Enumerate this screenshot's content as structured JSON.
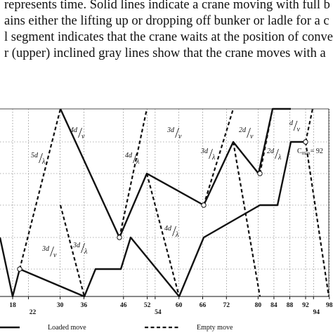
{
  "caption_lines": [
    "represents time. Solid lines indicate a crane moving with full b",
    "ains either the lifting up or dropping off bunker or ladle for a c",
    "l segment indicates that the crane waits at the position of conve",
    "r (upper) inclined gray lines show that the crane moves with a"
  ],
  "figure": {
    "time_ticks": [
      {
        "t": 18,
        "label": "18"
      },
      {
        "t": 22,
        "label": "22"
      },
      {
        "t": 30,
        "label": "30"
      },
      {
        "t": 36,
        "label": "36"
      },
      {
        "t": 46,
        "label": "46"
      },
      {
        "t": 52,
        "label": "52"
      },
      {
        "t": 54,
        "label": "54"
      },
      {
        "t": 60,
        "label": "60"
      },
      {
        "t": 66,
        "label": "66"
      },
      {
        "t": 72,
        "label": "72"
      },
      {
        "t": 80,
        "label": "80"
      },
      {
        "t": 84,
        "label": "84"
      },
      {
        "t": 88,
        "label": "88"
      },
      {
        "t": 92,
        "label": "92"
      },
      {
        "t": 94,
        "label": "94"
      },
      {
        "t": 98,
        "label": "98"
      }
    ],
    "annotations": [
      {
        "id": "ann-5d-lambda",
        "num": "5d",
        "den": "λ"
      },
      {
        "id": "ann-3d-v-left",
        "num": "3d",
        "den": "v"
      },
      {
        "id": "ann-4d-v-first",
        "num": "4d",
        "den": "v"
      },
      {
        "id": "ann-3d-lambda-left",
        "num": "3d",
        "den": "λ"
      },
      {
        "id": "ann-4d-lambda-mid",
        "num": "4d",
        "den": "λ"
      },
      {
        "id": "ann-4d-lambda-low",
        "num": "4d",
        "den": "λ"
      },
      {
        "id": "ann-3d-v-mid",
        "num": "3d",
        "den": "v"
      },
      {
        "id": "ann-3d-lambda-right",
        "num": "3d",
        "den": "λ"
      },
      {
        "id": "ann-2d-v",
        "num": "2d",
        "den": "v"
      },
      {
        "id": "ann-2d-lambda",
        "num": "2d",
        "den": "λ"
      },
      {
        "id": "ann-d-v",
        "num": "d",
        "den": "v"
      }
    ],
    "cmax": {
      "prefix": "C",
      "subscript": "max",
      "value": "= 92"
    },
    "legend": {
      "loaded": "Loaded move",
      "empty": "Empty move"
    }
  }
}
